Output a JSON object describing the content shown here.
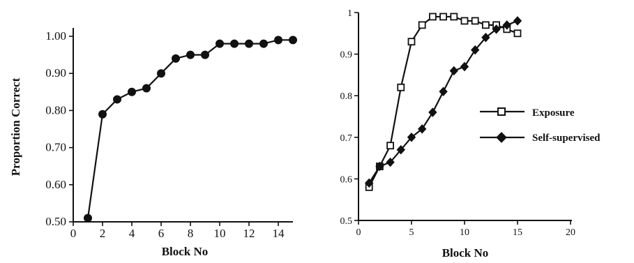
{
  "chart_data": [
    {
      "type": "line",
      "title": "",
      "xlabel": "Block No",
      "ylabel": "Proportion Correct",
      "xlim": [
        0,
        15
      ],
      "ylim": [
        0.5,
        1.0
      ],
      "x_ticks": [
        0,
        2,
        4,
        6,
        8,
        10,
        12,
        14
      ],
      "x_tick_labels": [
        "0",
        "2",
        "4",
        "6",
        "8",
        "10",
        "12",
        "14"
      ],
      "y_ticks": [
        0.5,
        0.6,
        0.7,
        0.8,
        0.9,
        1.0
      ],
      "y_tick_labels": [
        "0.50",
        "0.60",
        "0.70",
        "0.80",
        "0.90",
        "1.00"
      ],
      "grid": false,
      "legend": "none",
      "series": [
        {
          "marker": "filled-circle",
          "x": [
            1,
            2,
            3,
            4,
            5,
            6,
            7,
            8,
            9,
            10,
            11,
            12,
            13,
            14,
            15
          ],
          "y": [
            0.51,
            0.79,
            0.83,
            0.85,
            0.86,
            0.9,
            0.94,
            0.95,
            0.95,
            0.98,
            0.98,
            0.98,
            0.98,
            0.99,
            0.99
          ]
        }
      ]
    },
    {
      "type": "line",
      "title": "",
      "xlabel": "Block No",
      "ylabel": "",
      "xlim": [
        0,
        20
      ],
      "ylim": [
        0.5,
        1.0
      ],
      "x_ticks": [
        0,
        5,
        10,
        15,
        20
      ],
      "x_tick_labels": [
        "0",
        "5",
        "10",
        "15",
        "20"
      ],
      "y_ticks": [
        0.5,
        0.6,
        0.7,
        0.8,
        0.9,
        1.0
      ],
      "y_tick_labels": [
        "0.5",
        "0.6",
        "0.7",
        "0.8",
        "0.9",
        "1"
      ],
      "grid": false,
      "legend": "right",
      "series": [
        {
          "name": "Exposure",
          "marker": "open-square",
          "x": [
            1,
            2,
            3,
            4,
            5,
            6,
            7,
            8,
            9,
            10,
            11,
            12,
            13,
            14,
            15
          ],
          "y": [
            0.58,
            0.63,
            0.68,
            0.82,
            0.93,
            0.97,
            0.99,
            0.99,
            0.99,
            0.98,
            0.98,
            0.97,
            0.97,
            0.96,
            0.95
          ]
        },
        {
          "name": "Self-supervised",
          "marker": "filled-diamond",
          "x": [
            1,
            2,
            3,
            4,
            5,
            6,
            7,
            8,
            9,
            10,
            11,
            12,
            13,
            14,
            15
          ],
          "y": [
            0.59,
            0.63,
            0.64,
            0.67,
            0.7,
            0.72,
            0.76,
            0.81,
            0.86,
            0.87,
            0.91,
            0.94,
            0.96,
            0.97,
            0.98
          ]
        }
      ]
    }
  ]
}
